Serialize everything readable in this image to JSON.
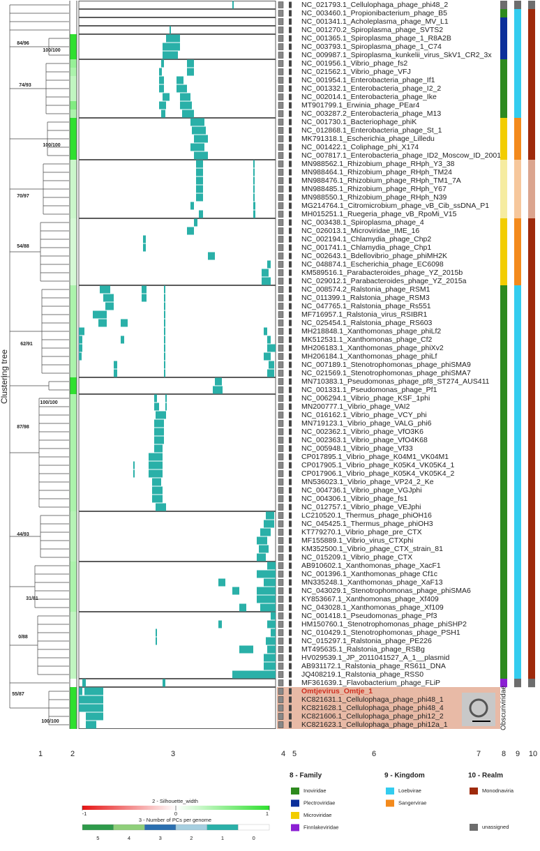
{
  "chart_data": {
    "type": "heatmap",
    "tree_label": "Clustering tree",
    "column_labels": [
      "1",
      "2",
      "3",
      "4",
      "5",
      "6",
      "7",
      "8",
      "9",
      "10"
    ],
    "obscuri_label": "Obscuriviridae",
    "clades": [
      "84/96",
      "100/100",
      "74/93",
      "100/100",
      "70/97",
      "54/88",
      "62/91",
      "100/100",
      "87/98",
      "44/93",
      "31/81",
      "0/88",
      "55/87",
      "100/100"
    ],
    "names": [
      "NC_021793.1_Cellulophaga_phage_phi48_2",
      "NC_003460.1_Propionibacterium_phage_B5",
      "NC_001341.1_Acholeplasma_phage_MV_L1",
      "NC_001270.2_Spiroplasma_phage_SVTS2",
      "NC_001365.1_Spiroplasma_phage_1_R8A2B",
      "NC_003793.1_Spiroplasma_phage_1_C74",
      "NC_009987.1_Spiroplasma_kunkelii_virus_SkV1_CR2_3x",
      "NC_001956.1_Vibrio_phage_fs2",
      "NC_021562.1_Vibrio_phage_VFJ",
      "NC_001954.1_Enterobacteria_phage_If1",
      "NC_001332.1_Enterobacteria_phage_I2_2",
      "NC_002014.1_Enterobacteria_phage_Ike",
      "MT901799.1_Erwinia_phage_PEar4",
      "NC_003287.2_Enterobacteria_phage_M13",
      "NC_001730.1_Bacteriophage_phiK",
      "NC_012868.1_Enterobacteria_phage_St_1",
      "MK791318.1_Escherichia_phage_Lilledu",
      "NC_001422.1_Coliphage_phi_X174",
      "NC_007817.1_Enterobacteria_phage_ID2_Moscow_ID_2001",
      "MN988562.1_Rhizobium_phage_RHph_Y3_38",
      "MN988464.1_Rhizobium_phage_RHph_TM24",
      "MN988476.1_Rhizobium_phage_RHph_TM1_7A",
      "MN988485.1_Rhizobium_phage_RHph_Y67",
      "MN988550.1_Rhizobium_phage_RHph_N39",
      "MG214764.1_Citromicrobium_phage_vB_Cib_ssDNA_P1",
      "MH015251.1_Ruegeria_phage_vB_RpoMi_V15",
      "NC_003438.1_Spiroplasma_phage_4",
      "NC_026013.1_Microviridae_IME_16",
      "NC_002194.1_Chlamydia_phage_Chp2",
      "NC_001741.1_Chlamydia_phage_Chp1",
      "NC_002643.1_Bdellovibrio_phage_phiMH2K",
      "NC_048874.1_Escherichia_phage_EC6098",
      "KM589516.1_Parabacteroides_phage_YZ_2015b",
      "NC_029012.1_Parabacteroides_phage_YZ_2015a",
      "NC_008574.2_Ralstonia_phage_RSM1",
      "NC_011399.1_Ralstonia_phage_RSM3",
      "NC_047765.1_Ralstonia_phage_Rs551",
      "MF716957.1_Ralstonia_virus_RSIBR1",
      "NC_025454.1_Ralstonia_phage_RS603",
      "MH218848.1_Xanthomonas_phage_phiLf2",
      "MK512531.1_Xanthomonas_phage_Cf2",
      "MH206183.1_Xanthomonas_phage_phiXv2",
      "MH206184.1_Xanthomonas_phage_phiLf",
      "NC_007189.1_Stenotrophomonas_phage_phiSMA9",
      "NC_021569.1_Stenotrophomonas_phage_phiSMA7",
      "MN710383.1_Pseudomonas_phage_pf8_ST274_AUS411",
      "NC_001331.1_Pseudomonas_phage_Pf1",
      "NC_006294.1_Vibrio_phage_KSF_1phi",
      "MN200777.1_Vibrio_phage_VAI2",
      "NC_016162.1_Vibrio_phage_VCY_phi",
      "MN719123.1_Vibrio_phage_VALG_phi6",
      "NC_002362.1_Vibrio_phage_VfO3K6",
      "NC_002363.1_Vibrio_phage_VfO4K68",
      "NC_005948.1_Vibrio_phage_Vf33",
      "CP017895.1_Vibrio_phage_K04M1_VK04M1",
      "CP017905.1_Vibrio_phage_K05K4_VK05K4_1",
      "CP017906.1_Vibrio_phage_K05K4_VK05K4_2",
      "MN536023.1_Vibrio_phage_VP24_2_Ke",
      "NC_004736.1_Vibrio_phage_VGJphi",
      "NC_004306.1_Vibrio_phage_fs1",
      "NC_012757.1_Vibrio_phage_VEJphi",
      "LC210520.1_Thermus_phage_phiOH16",
      "NC_045425.1_Thermus_phage_phiOH3",
      "KT779270.1_Vibrio_phage_pre_CTX",
      "MF155889.1_Vibrio_virus_CTXphi",
      "KM352500.1_Vibrio_phage_CTX_strain_81",
      "NC_015209.1_Vibrio_phage_CTX",
      "AB910602.1_Xanthomonas_phage_XacF1",
      "NC_001396.1_Xanthomonas_phage Cf1c",
      "MN335248.1_Xanthomonas_phage_XaF13",
      "NC_043029.1_Stenotrophomonas_phage_phiSMA6",
      "KY853667.1_Xanthomonas_phage_Xf409",
      "NC_043028.1_Xanthomonas_phage_Xf109",
      "NC_001418.1_Pseudomonas_phage_Pf3",
      "HM150760.1_Stenotrophomonas_phage_phiSHP2",
      "NC_010429.1_Stenotrophomonas_phage_PSH1",
      "NC_015297.1_Ralstonia_phage_PE226",
      "MT495635.1_Ralstonia_phage_RSBg",
      "HV029539.1_JP_2011041527_A_1__plasmid",
      "AB931172.1_Ralstonia_phage_RS611_DNA",
      "JQ408219.1_Ralstonia_phage_RSS0",
      "MF361639.1_Flavobacterium_phage_FLiP",
      "Omtjevirus_Omtje_1",
      "KC821631.1_Cellulophaga_phage_phi48_1",
      "KC821628.1_Cellulophaga_phage_phi48_4",
      "KC821606.1_Cellulophaga_phage_phi12_2",
      "KC821623.1_Cellulophaga_phage_phi12a_1"
    ],
    "silhouette": [
      0,
      0,
      0,
      0,
      1,
      1,
      1,
      0.5,
      0.4,
      0.3,
      0.3,
      0.3,
      0.6,
      0.4,
      1,
      1,
      1,
      1,
      1,
      0.25,
      0.25,
      0.25,
      0.25,
      0.25,
      0.25,
      0.25,
      0.2,
      0.2,
      0.2,
      0.2,
      0.2,
      0.2,
      0.2,
      0.2,
      0.4,
      0.4,
      0.4,
      0.4,
      0.4,
      0.4,
      0.4,
      0.4,
      0.4,
      0.4,
      0.4,
      1,
      1,
      0.4,
      0.4,
      0.4,
      0.4,
      0.4,
      0.4,
      0.4,
      0.4,
      0.4,
      0.4,
      0.4,
      0.4,
      0.4,
      0.4,
      0.35,
      0.35,
      0.35,
      0.35,
      0.35,
      0.35,
      0.4,
      0.4,
      0.4,
      0.4,
      0.4,
      0.4,
      0.3,
      0.3,
      0.3,
      0.3,
      0.3,
      0.3,
      0.3,
      0.3,
      0,
      1,
      1,
      1,
      1,
      1
    ],
    "pc_spans": [
      [
        [
          220,
          222
        ]
      ],
      [],
      [],
      [
        [
          130,
          132
        ]
      ],
      [
        [
          125,
          145
        ]
      ],
      [
        [
          120,
          145
        ]
      ],
      [
        [
          120,
          142
        ]
      ],
      [
        [
          118,
          122
        ],
        [
          155,
          165
        ]
      ],
      [
        [
          115,
          119
        ],
        [
          155,
          165
        ]
      ],
      [
        [
          115,
          122
        ],
        [
          140,
          150
        ]
      ],
      [
        [
          115,
          122
        ],
        [
          140,
          155
        ]
      ],
      [
        [
          120,
          130
        ],
        [
          145,
          160
        ]
      ],
      [
        [
          115,
          125
        ],
        [
          145,
          162
        ]
      ],
      [
        [
          118,
          124
        ],
        [
          148,
          165
        ]
      ],
      [
        [
          160,
          180
        ]
      ],
      [
        [
          162,
          182
        ]
      ],
      [
        [
          165,
          185
        ]
      ],
      [
        [
          160,
          180
        ]
      ],
      [
        [
          165,
          185
        ]
      ],
      [
        [
          168,
          178
        ],
        [
          250,
          252
        ]
      ],
      [
        [
          168,
          178
        ],
        [
          250,
          252
        ]
      ],
      [
        [
          168,
          178
        ],
        [
          250,
          252
        ]
      ],
      [
        [
          168,
          178
        ],
        [
          250,
          252
        ]
      ],
      [
        [
          168,
          178
        ],
        [
          250,
          252
        ]
      ],
      [
        [
          160,
          165
        ],
        [
          250,
          253
        ]
      ],
      [
        [
          172,
          178
        ],
        [
          250,
          253
        ]
      ],
      [
        [
          165,
          170
        ]
      ],
      [
        [
          155,
          165
        ]
      ],
      [
        [
          92,
          96
        ]
      ],
      [
        [
          92,
          96
        ]
      ],
      [
        [
          185,
          195
        ]
      ],
      [
        [
          270,
          275
        ]
      ],
      [
        [
          262,
          272
        ]
      ],
      [
        [
          262,
          275
        ]
      ],
      [
        [
          30,
          45
        ],
        [
          90,
          97
        ],
        [
          122,
          124
        ]
      ],
      [
        [
          35,
          50
        ],
        [
          90,
          97
        ],
        [
          122,
          124
        ]
      ],
      [
        [
          38,
          50
        ],
        [
          122,
          124
        ]
      ],
      [
        [
          20,
          40
        ],
        [
          122,
          124
        ]
      ],
      [
        [
          28,
          40
        ],
        [
          60,
          70
        ],
        [
          122,
          124
        ]
      ],
      [
        [
          0,
          8
        ],
        [
          122,
          124
        ],
        [
          265,
          270
        ]
      ],
      [
        [
          0,
          5
        ],
        [
          60,
          65
        ],
        [
          122,
          124
        ],
        [
          270,
          275
        ]
      ],
      [
        [
          0,
          5
        ],
        [
          122,
          124
        ],
        [
          270,
          282
        ]
      ],
      [
        [
          0,
          4
        ],
        [
          122,
          124
        ],
        [
          265,
          275
        ]
      ],
      [
        [
          50,
          55
        ],
        [
          122,
          124
        ],
        [
          272,
          280
        ]
      ],
      [
        [
          50,
          55
        ],
        [
          122,
          124
        ],
        [
          270,
          280
        ]
      ],
      [
        [
          195,
          205
        ]
      ],
      [
        [
          192,
          206
        ]
      ],
      [
        [
          108,
          112
        ],
        [
          124,
          126
        ]
      ],
      [
        [
          108,
          115
        ],
        [
          124,
          126
        ]
      ],
      [
        [
          110,
          125
        ]
      ],
      [
        [
          108,
          122
        ]
      ],
      [
        [
          108,
          122
        ]
      ],
      [
        [
          108,
          122
        ]
      ],
      [
        [
          108,
          120
        ]
      ],
      [
        [
          100,
          120
        ]
      ],
      [
        [
          78,
          80
        ],
        [
          100,
          120
        ]
      ],
      [
        [
          78,
          80
        ],
        [
          100,
          120
        ]
      ],
      [
        [
          105,
          118
        ]
      ],
      [
        [
          105,
          120
        ]
      ],
      [
        [
          105,
          120
        ]
      ],
      [
        [
          110,
          125
        ]
      ],
      [
        [
          268,
          280
        ]
      ],
      [
        [
          265,
          280
        ]
      ],
      [
        [
          260,
          275
        ]
      ],
      [
        [
          255,
          270
        ]
      ],
      [
        [
          258,
          272
        ]
      ],
      [
        [
          255,
          268
        ]
      ],
      [
        [
          270,
          282
        ]
      ],
      [
        [
          255,
          282
        ]
      ],
      [
        [
          200,
          210
        ],
        [
          265,
          282
        ]
      ],
      [
        [
          220,
          230
        ],
        [
          255,
          282
        ]
      ],
      [
        [
          255,
          282
        ]
      ],
      [
        [
          230,
          240
        ],
        [
          260,
          282
        ]
      ],
      [
        [
          275,
          282
        ]
      ],
      [
        [
          200,
          205
        ],
        [
          270,
          282
        ]
      ],
      [
        [
          110,
          112
        ],
        [
          275,
          282
        ]
      ],
      [
        [
          110,
          112
        ],
        [
          268,
          282
        ]
      ],
      [
        [
          230,
          250
        ],
        [
          270,
          282
        ]
      ],
      [
        [
          265,
          282
        ]
      ],
      [
        [
          265,
          282
        ]
      ],
      [
        [
          220,
          282
        ]
      ],
      [
        [
          5,
          10
        ],
        [
          120,
          124
        ]
      ],
      [
        [
          0,
          5
        ],
        [
          8,
          35
        ]
      ],
      [
        [
          0,
          35
        ]
      ],
      [
        [
          0,
          35
        ]
      ],
      [
        [
          10,
          35
        ]
      ],
      [
        [
          10,
          25
        ]
      ]
    ],
    "pc_color": "#2ab0a8",
    "family_colors": [
      "#6d6d6d",
      "#2d8a1e",
      "#0b2f9a",
      "#0b2f9a",
      "#0b2f9a",
      "#0b2f9a",
      "#0b2f9a",
      "#2d8a1e",
      "#2d8a1e",
      "#2d8a1e",
      "#2d8a1e",
      "#2d8a1e",
      "#2d8a1e",
      "#2d8a1e",
      "#f2cd00",
      "#f2cd00",
      "#f2cd00",
      "#f2cd00",
      "#f2cd00",
      "#f6eca0",
      "#f6eca0",
      "#f6eca0",
      "#f6eca0",
      "#f6eca0",
      "#f6eca0",
      "#f6eca0",
      "#f2cd00",
      "#f2cd00",
      "#f2cd00",
      "#f2cd00",
      "#f2cd00",
      "#f2cd00",
      "#f2cd00",
      "#f2cd00",
      "#2d8a1e",
      "#2d8a1e",
      "#2d8a1e",
      "#2d8a1e",
      "#2d8a1e",
      "#2d8a1e",
      "#2d8a1e",
      "#2d8a1e",
      "#2d8a1e",
      "#2d8a1e",
      "#2d8a1e",
      "#2d8a1e",
      "#2d8a1e",
      "#2d8a1e",
      "#2d8a1e",
      "#2d8a1e",
      "#2d8a1e",
      "#2d8a1e",
      "#2d8a1e",
      "#2d8a1e",
      "#2d8a1e",
      "#2d8a1e",
      "#2d8a1e",
      "#2d8a1e",
      "#2d8a1e",
      "#2d8a1e",
      "#2d8a1e",
      "#2d8a1e",
      "#2d8a1e",
      "#2d8a1e",
      "#2d8a1e",
      "#2d8a1e",
      "#2d8a1e",
      "#2d8a1e",
      "#2d8a1e",
      "#2d8a1e",
      "#2d8a1e",
      "#2d8a1e",
      "#2d8a1e",
      "#2d8a1e",
      "#2d8a1e",
      "#2d8a1e",
      "#2d8a1e",
      "#2d8a1e",
      "#2d8a1e",
      "#2d8a1e",
      "#2d8a1e",
      "#8b1fd3",
      null,
      null,
      null,
      null,
      null
    ],
    "kingdom_colors": [
      "#6d6d6d",
      "#33ccef",
      "#33ccef",
      "#33ccef",
      "#33ccef",
      "#33ccef",
      "#33ccef",
      "#33ccef",
      "#33ccef",
      "#33ccef",
      "#33ccef",
      "#33ccef",
      "#33ccef",
      "#33ccef",
      "#f38a1c",
      "#f38a1c",
      "#f38a1c",
      "#f38a1c",
      "#f38a1c",
      "#f6c79c",
      "#f6c79c",
      "#f6c79c",
      "#f6c79c",
      "#f6c79c",
      "#f6c79c",
      "#f6c79c",
      "#f38a1c",
      "#f38a1c",
      "#f38a1c",
      "#f38a1c",
      "#f38a1c",
      "#f38a1c",
      "#f38a1c",
      "#f38a1c",
      "#33ccef",
      "#33ccef",
      "#33ccef",
      "#33ccef",
      "#33ccef",
      "#33ccef",
      "#33ccef",
      "#33ccef",
      "#33ccef",
      "#33ccef",
      "#33ccef",
      "#33ccef",
      "#33ccef",
      "#33ccef",
      "#33ccef",
      "#33ccef",
      "#33ccef",
      "#33ccef",
      "#33ccef",
      "#33ccef",
      "#33ccef",
      "#33ccef",
      "#33ccef",
      "#33ccef",
      "#33ccef",
      "#33ccef",
      "#33ccef",
      "#33ccef",
      "#33ccef",
      "#33ccef",
      "#33ccef",
      "#33ccef",
      "#33ccef",
      "#33ccef",
      "#33ccef",
      "#33ccef",
      "#33ccef",
      "#33ccef",
      "#33ccef",
      "#33ccef",
      "#33ccef",
      "#33ccef",
      "#33ccef",
      "#33ccef",
      "#33ccef",
      "#33ccef",
      "#33ccef",
      "#6d6d6d",
      null,
      null,
      null,
      null,
      null
    ],
    "realm_colors": [
      "#6d6d6d",
      "#9e2a0c",
      "#9e2a0c",
      "#9e2a0c",
      "#9e2a0c",
      "#9e2a0c",
      "#9e2a0c",
      "#9e2a0c",
      "#9e2a0c",
      "#9e2a0c",
      "#9e2a0c",
      "#9e2a0c",
      "#9e2a0c",
      "#9e2a0c",
      "#9e2a0c",
      "#9e2a0c",
      "#9e2a0c",
      "#9e2a0c",
      "#9e2a0c",
      "#dba58f",
      "#dba58f",
      "#dba58f",
      "#dba58f",
      "#dba58f",
      "#dba58f",
      "#dba58f",
      "#9e2a0c",
      "#9e2a0c",
      "#9e2a0c",
      "#9e2a0c",
      "#9e2a0c",
      "#9e2a0c",
      "#9e2a0c",
      "#9e2a0c",
      "#9e2a0c",
      "#9e2a0c",
      "#9e2a0c",
      "#9e2a0c",
      "#9e2a0c",
      "#9e2a0c",
      "#9e2a0c",
      "#9e2a0c",
      "#9e2a0c",
      "#9e2a0c",
      "#9e2a0c",
      "#9e2a0c",
      "#9e2a0c",
      "#9e2a0c",
      "#9e2a0c",
      "#9e2a0c",
      "#9e2a0c",
      "#9e2a0c",
      "#9e2a0c",
      "#9e2a0c",
      "#9e2a0c",
      "#9e2a0c",
      "#9e2a0c",
      "#9e2a0c",
      "#9e2a0c",
      "#9e2a0c",
      "#9e2a0c",
      "#9e2a0c",
      "#9e2a0c",
      "#9e2a0c",
      "#9e2a0c",
      "#9e2a0c",
      "#9e2a0c",
      "#9e2a0c",
      "#9e2a0c",
      "#9e2a0c",
      "#9e2a0c",
      "#9e2a0c",
      "#9e2a0c",
      "#9e2a0c",
      "#9e2a0c",
      "#9e2a0c",
      "#9e2a0c",
      "#9e2a0c",
      "#9e2a0c",
      "#9e2a0c",
      "#9e2a0c",
      "#6d6d6d",
      null,
      null,
      null,
      null,
      null
    ],
    "silhouette_legend": {
      "title": "2 - Silhouette_width",
      "ticks": [
        -1,
        0,
        1
      ]
    },
    "pc_legend": {
      "title": "3 - Number of PCs per genome",
      "levels": [
        5,
        4,
        3,
        2,
        1,
        0
      ],
      "colors": [
        "#2e9a4a",
        "#8fcf7a",
        "#2a6fb0",
        "#a6cfe0",
        "#2ab0a8",
        "#ffffff"
      ]
    },
    "family_legend": {
      "title": "8 - Family",
      "items": [
        {
          "name": "Inoviridae",
          "color": "#2d8a1e"
        },
        {
          "name": "Plectroviridae",
          "color": "#0b2f9a"
        },
        {
          "name": "Microviridae",
          "color": "#f2cd00"
        },
        {
          "name": "Finnlakeviridae",
          "color": "#8b1fd3"
        }
      ]
    },
    "kingdom_legend": {
      "title": "9 - Kingdom",
      "items": [
        {
          "name": "Loebvirae",
          "color": "#33ccef"
        },
        {
          "name": "Sangervirae",
          "color": "#f38a1c"
        }
      ]
    },
    "realm_legend": {
      "title": "10 - Realm",
      "items": [
        {
          "name": "Monodnaviria",
          "color": "#9e2a0c"
        }
      ]
    },
    "unassigned": {
      "name": "unassigned",
      "color": "#6d6d6d"
    }
  }
}
